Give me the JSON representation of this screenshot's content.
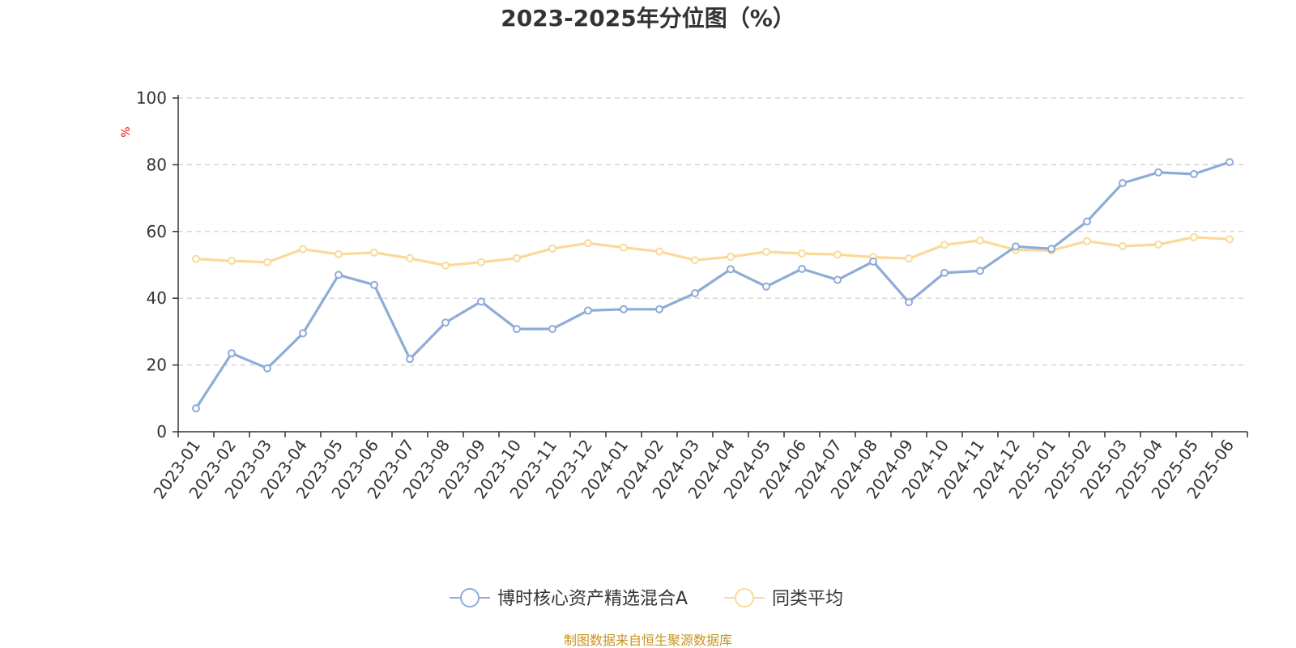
{
  "chart_data": {
    "type": "line",
    "title": "2023-2025年分位图（%）",
    "y_unit": "%",
    "ylim": [
      0,
      100
    ],
    "yticks": [
      0,
      20,
      40,
      60,
      80,
      100
    ],
    "grid": "horizontal dashed",
    "legend_position": "bottom-center",
    "categories": [
      "2023-01",
      "2023-02",
      "2023-03",
      "2023-04",
      "2023-05",
      "2023-06",
      "2023-07",
      "2023-08",
      "2023-09",
      "2023-10",
      "2023-11",
      "2023-12",
      "2024-01",
      "2024-02",
      "2024-03",
      "2024-04",
      "2024-05",
      "2024-06",
      "2024-07",
      "2024-08",
      "2024-09",
      "2024-10",
      "2024-11",
      "2024-12",
      "2025-01",
      "2025-02",
      "2025-03",
      "2025-04",
      "2025-05",
      "2025-06"
    ],
    "series": [
      {
        "name": "博时核心资产精选混合A",
        "color": "#8eacd8",
        "values": [
          7,
          23.5,
          19,
          29.5,
          47,
          44,
          21.8,
          32.7,
          39,
          30.8,
          30.8,
          36.3,
          36.7,
          36.7,
          41.5,
          48.7,
          43.5,
          48.8,
          45.5,
          51,
          38.8,
          47.6,
          48.2,
          55.5,
          54.8,
          63,
          74.5,
          77.7,
          77.2,
          80.8
        ]
      },
      {
        "name": "同类平均",
        "color": "#fbd999",
        "values": [
          51.8,
          51.2,
          50.8,
          54.7,
          53.2,
          53.7,
          52,
          49.8,
          50.8,
          52,
          54.9,
          56.5,
          55.2,
          54,
          51.4,
          52.4,
          53.9,
          53.4,
          53.1,
          52.3,
          51.9,
          56,
          57.3,
          54.5,
          54.3,
          57.1,
          55.6,
          56.1,
          58.3,
          57.7
        ]
      }
    ]
  },
  "footer": {
    "source": "制图数据来自恒生聚源数据库"
  }
}
